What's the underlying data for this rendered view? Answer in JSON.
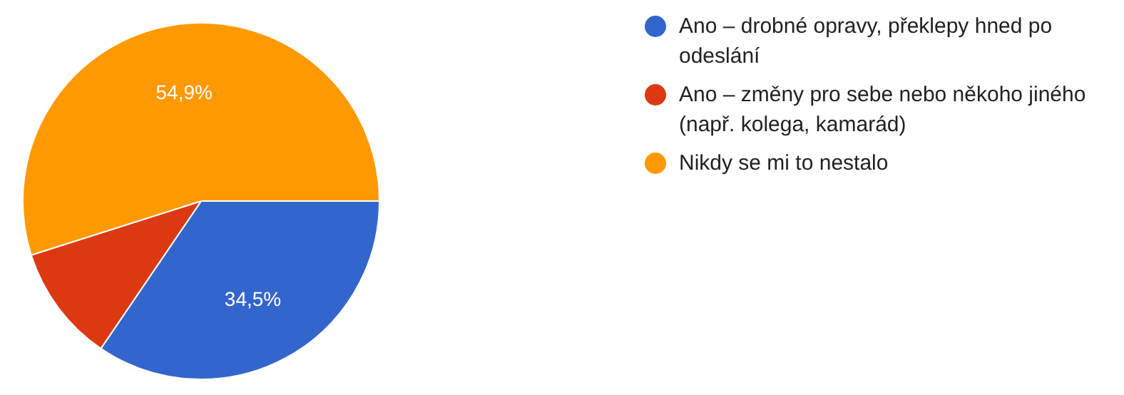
{
  "chart_data": {
    "type": "pie",
    "categories": [
      "Ano – drobné opravy, překlepy hned po odeslání",
      "Ano – změny pro sebe nebo někoho jiného (např. kolega, kamarád)",
      "Nikdy se mi to nestalo"
    ],
    "values": [
      34.5,
      10.6,
      54.9
    ],
    "colors": [
      "#3366cc",
      "#dc3912",
      "#ff9900"
    ],
    "value_labels": [
      "34,5%",
      null,
      "54,9%"
    ],
    "legend": "right"
  }
}
